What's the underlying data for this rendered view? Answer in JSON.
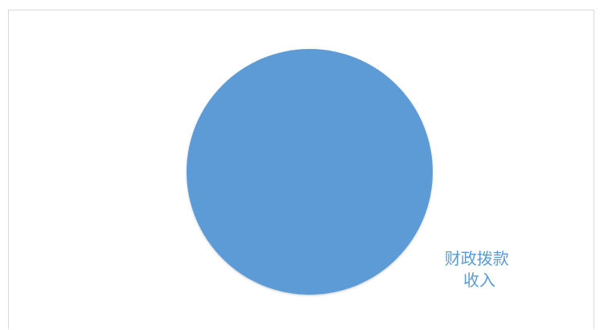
{
  "chart_data": {
    "type": "pie",
    "series": [
      {
        "values": [
          100
        ],
        "labels": [
          {
            "line1": "财政拨款",
            "line2": "收入"
          }
        ],
        "colors": [
          "#5B9BD5"
        ]
      }
    ],
    "title": "",
    "legend": "none",
    "label_color": "#5B9BD5"
  }
}
